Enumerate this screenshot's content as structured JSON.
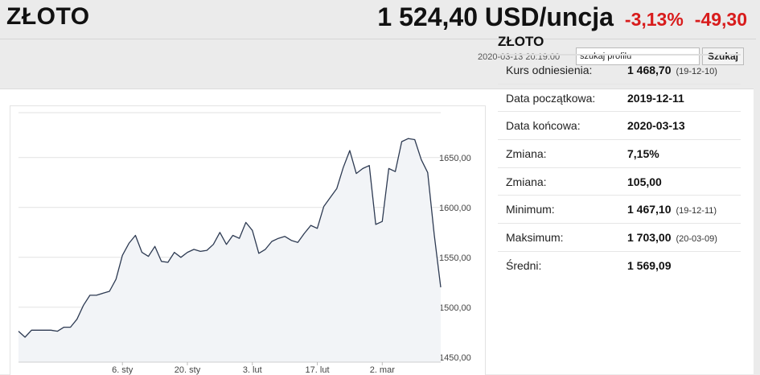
{
  "header": {
    "title": "ZŁOTO",
    "price": "1 524,40 USD/uncja",
    "change_pct": "-3,13%",
    "change_abs": "-49,30",
    "timestamp": "2020-03-13 20:19:00",
    "search_placeholder": "szukaj profilu",
    "search_value": "szukaj profilu",
    "search_button": "Szukaj",
    "change_color": "#d81c1c"
  },
  "info": {
    "title": "ZŁOTO",
    "rows": [
      {
        "label": "Kurs odniesienia:",
        "value": "1 468,70",
        "date": "(19-12-10)"
      },
      {
        "label": "Data początkowa:",
        "value": "2019-12-11",
        "date": ""
      },
      {
        "label": "Data końcowa:",
        "value": "2020-03-13",
        "date": ""
      },
      {
        "label": "Zmiana:",
        "value": "7,15%",
        "date": ""
      },
      {
        "label": "Zmiana:",
        "value": "105,00",
        "date": ""
      },
      {
        "label": "Minimum:",
        "value": "1 467,10",
        "date": "(19-12-11)"
      },
      {
        "label": "Maksimum:",
        "value": "1 703,00",
        "date": "(20-03-09)"
      },
      {
        "label": "Średni:",
        "value": "1 569,09",
        "date": ""
      }
    ]
  },
  "chart_data": {
    "type": "area",
    "title": "",
    "xlabel": "",
    "ylabel": "",
    "y_ticks": [
      1450,
      1500,
      1550,
      1600,
      1650
    ],
    "y_tick_labels": [
      "1450,00",
      "1500,00",
      "1550,00",
      "1600,00",
      "1650,00"
    ],
    "ylim": [
      1445,
      1695
    ],
    "y_axis_side": "right",
    "x_ticks": [
      {
        "index": 16,
        "label": "6. sty"
      },
      {
        "index": 26,
        "label": "20. sty"
      },
      {
        "index": 36,
        "label": "3. lut"
      },
      {
        "index": 46,
        "label": "17. lut"
      },
      {
        "index": 56,
        "label": "2. mar"
      }
    ],
    "grid": "horizontal",
    "line_color": "#2d3a52",
    "fill_color": "#f2f4f7",
    "series": [
      {
        "values": [
          1476,
          1470,
          1477,
          1477,
          1477,
          1477,
          1476,
          1480,
          1480,
          1488,
          1502,
          1512,
          1512,
          1514,
          1516,
          1528,
          1552,
          1564,
          1572,
          1555,
          1551,
          1561,
          1546,
          1545,
          1555,
          1550,
          1555,
          1558,
          1556,
          1557,
          1563,
          1575,
          1563,
          1572,
          1569,
          1585,
          1577,
          1554,
          1558,
          1566,
          1569,
          1571,
          1567,
          1565,
          1574,
          1582,
          1579,
          1601,
          1610,
          1619,
          1640,
          1657,
          1634,
          1639,
          1642,
          1583,
          1586,
          1639,
          1636,
          1666,
          1669,
          1668,
          1648,
          1635,
          1573,
          1520
        ]
      }
    ]
  }
}
